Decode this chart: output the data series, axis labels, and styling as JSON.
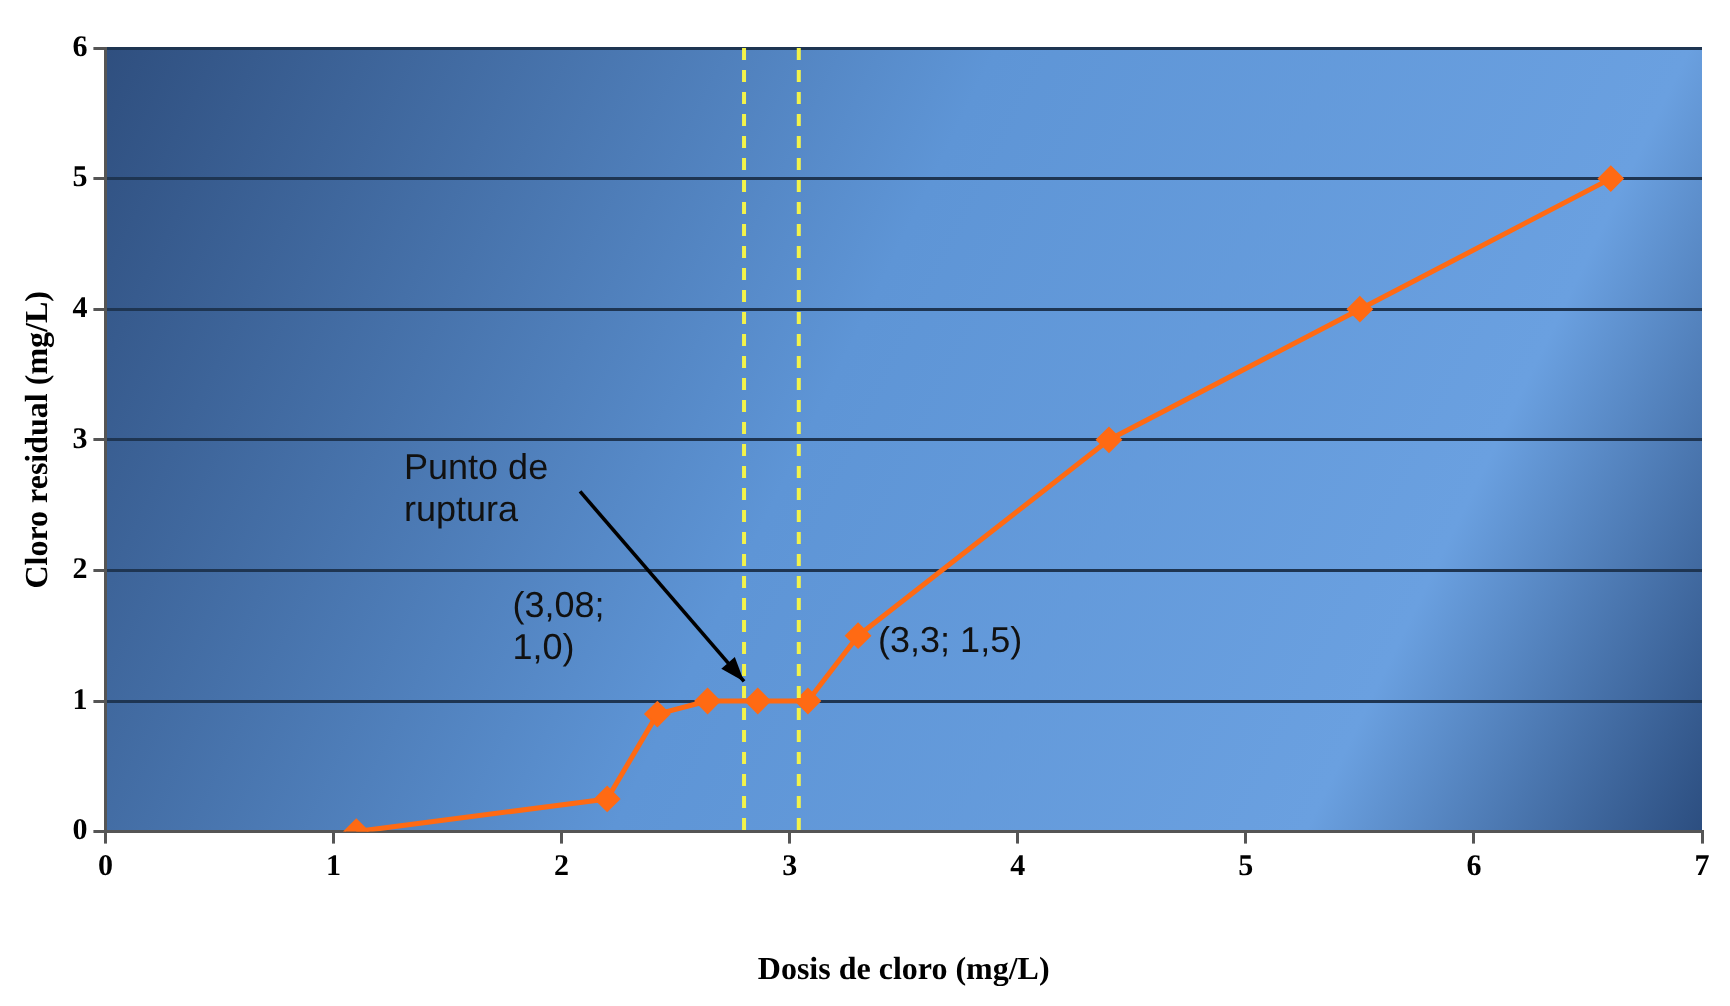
{
  "chart_data": {
    "type": "line",
    "xlabel": "Dosis de cloro (mg/L)",
    "ylabel": "Cloro residual (mg/L)",
    "x": [
      1.1,
      2.2,
      2.42,
      2.64,
      2.86,
      3.08,
      3.3,
      4.4,
      5.5,
      6.6
    ],
    "series": [
      {
        "color": "#ff6a13",
        "values": [
          0,
          0.25,
          0.9,
          1,
          1,
          1,
          1.5,
          3,
          4,
          5
        ]
      }
    ],
    "xlim": [
      0,
      7
    ],
    "xticks": [
      0,
      1,
      2,
      3,
      4,
      5,
      6,
      7
    ],
    "ylim": [
      0,
      6
    ],
    "yticks": [
      0,
      1,
      2,
      3,
      4,
      5,
      6
    ],
    "grid": "y",
    "marker": "diamond",
    "line_style": "solid",
    "ref_lines": [
      {
        "axis": "x",
        "value": 2.8,
        "color": "#f2f24a",
        "line_style": "dashed"
      },
      {
        "axis": "x",
        "value": 3.04,
        "color": "#f2f24a",
        "line_style": "dashed"
      }
    ],
    "annotations": [
      {
        "text": "Punto de\nruptura",
        "x": 2.8,
        "y": 1.15
      },
      "(3,08;\n1,0)",
      {
        "text": "(3,3; 1,5)",
        "x": 3.3,
        "y": 1.5
      }
    ]
  }
}
